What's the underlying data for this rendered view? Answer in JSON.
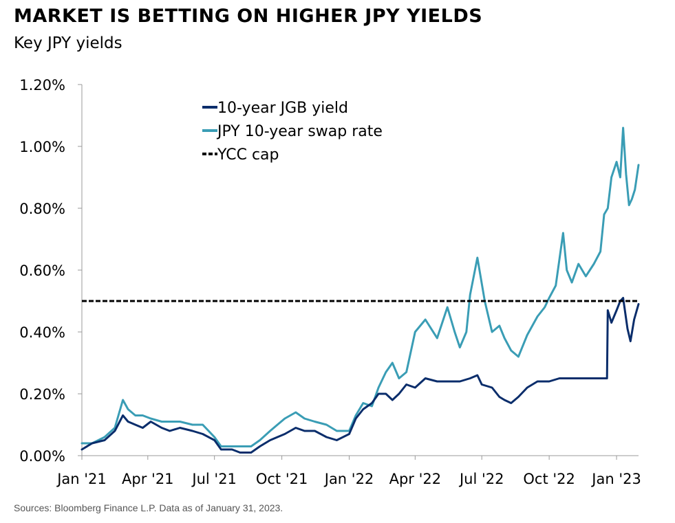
{
  "header": {
    "title": "MARKET IS BETTING ON HIGHER JPY YIELDS",
    "subtitle": "Key JPY yields"
  },
  "footer": {
    "source": "Sources: Bloomberg Finance L.P. Data as of January 31, 2023."
  },
  "colors": {
    "jgb": "#0a2d6b",
    "swap": "#3a9db5",
    "ycc": "#000000",
    "axis": "#999999"
  },
  "chart_data": {
    "type": "line",
    "x_unit": "date",
    "xlim": [
      "2021-01-01",
      "2023-01-31"
    ],
    "ylim": [
      0.0,
      1.2
    ],
    "y_format": "percent",
    "y_ticks": [
      0.0,
      0.2,
      0.4,
      0.6,
      0.8,
      1.0,
      1.2
    ],
    "y_tick_labels": [
      "0.00%",
      "0.20%",
      "0.40%",
      "0.60%",
      "0.80%",
      "1.00%",
      "1.20%"
    ],
    "x_ticks": [
      "2021-01-01",
      "2021-04-01",
      "2021-07-01",
      "2021-10-01",
      "2022-01-01",
      "2022-04-01",
      "2022-07-01",
      "2022-10-01",
      "2023-01-01"
    ],
    "x_tick_labels": [
      "Jan '21",
      "Apr '21",
      "Jul '21",
      "Oct '21",
      "Jan '22",
      "Apr '22",
      "Jul '22",
      "Oct '22",
      "Jan '23"
    ],
    "legend_position": "top-center",
    "grid": false,
    "series": [
      {
        "name": "10-year JGB yield",
        "color": "#0a2d6b",
        "style": "solid",
        "x": [
          "2021-01-01",
          "2021-01-15",
          "2021-02-01",
          "2021-02-15",
          "2021-02-26",
          "2021-03-05",
          "2021-03-15",
          "2021-03-25",
          "2021-04-05",
          "2021-04-20",
          "2021-05-01",
          "2021-05-15",
          "2021-06-01",
          "2021-06-15",
          "2021-07-01",
          "2021-07-10",
          "2021-07-25",
          "2021-08-05",
          "2021-08-20",
          "2021-09-01",
          "2021-09-15",
          "2021-09-25",
          "2021-10-05",
          "2021-10-20",
          "2021-11-01",
          "2021-11-15",
          "2021-12-01",
          "2021-12-15",
          "2022-01-01",
          "2022-01-10",
          "2022-01-20",
          "2022-02-01",
          "2022-02-10",
          "2022-02-20",
          "2022-03-01",
          "2022-03-10",
          "2022-03-20",
          "2022-04-01",
          "2022-04-15",
          "2022-05-01",
          "2022-05-15",
          "2022-06-01",
          "2022-06-15",
          "2022-06-25",
          "2022-07-01",
          "2022-07-15",
          "2022-07-25",
          "2022-08-01",
          "2022-08-10",
          "2022-08-20",
          "2022-09-01",
          "2022-09-15",
          "2022-10-01",
          "2022-10-15",
          "2022-11-01",
          "2022-11-15",
          "2022-12-01",
          "2022-12-15",
          "2022-12-19",
          "2022-12-20",
          "2022-12-25",
          "2023-01-01",
          "2023-01-06",
          "2023-01-10",
          "2023-01-13",
          "2023-01-16",
          "2023-01-20",
          "2023-01-25",
          "2023-01-31"
        ],
        "y": [
          0.02,
          0.04,
          0.05,
          0.08,
          0.13,
          0.11,
          0.1,
          0.09,
          0.11,
          0.09,
          0.08,
          0.09,
          0.08,
          0.07,
          0.05,
          0.02,
          0.02,
          0.01,
          0.01,
          0.03,
          0.05,
          0.06,
          0.07,
          0.09,
          0.08,
          0.08,
          0.06,
          0.05,
          0.07,
          0.12,
          0.15,
          0.17,
          0.2,
          0.2,
          0.18,
          0.2,
          0.23,
          0.22,
          0.25,
          0.24,
          0.24,
          0.24,
          0.25,
          0.26,
          0.23,
          0.22,
          0.19,
          0.18,
          0.17,
          0.19,
          0.22,
          0.24,
          0.24,
          0.25,
          0.25,
          0.25,
          0.25,
          0.25,
          0.25,
          0.47,
          0.43,
          0.47,
          0.5,
          0.51,
          0.46,
          0.41,
          0.37,
          0.44,
          0.49
        ]
      },
      {
        "name": "JPY 10-year swap rate",
        "color": "#3a9db5",
        "style": "solid",
        "x": [
          "2021-01-01",
          "2021-01-15",
          "2021-02-01",
          "2021-02-15",
          "2021-02-26",
          "2021-03-05",
          "2021-03-15",
          "2021-03-25",
          "2021-04-05",
          "2021-04-20",
          "2021-05-01",
          "2021-05-15",
          "2021-06-01",
          "2021-06-15",
          "2021-07-01",
          "2021-07-10",
          "2021-07-25",
          "2021-08-05",
          "2021-08-20",
          "2021-09-01",
          "2021-09-15",
          "2021-09-25",
          "2021-10-05",
          "2021-10-20",
          "2021-11-01",
          "2021-11-15",
          "2021-12-01",
          "2021-12-15",
          "2022-01-01",
          "2022-01-10",
          "2022-01-20",
          "2022-02-01",
          "2022-02-10",
          "2022-02-20",
          "2022-03-01",
          "2022-03-10",
          "2022-03-20",
          "2022-04-01",
          "2022-04-15",
          "2022-05-01",
          "2022-05-15",
          "2022-05-25",
          "2022-06-01",
          "2022-06-10",
          "2022-06-15",
          "2022-06-25",
          "2022-07-05",
          "2022-07-15",
          "2022-07-25",
          "2022-08-01",
          "2022-08-10",
          "2022-08-20",
          "2022-09-01",
          "2022-09-15",
          "2022-09-25",
          "2022-10-01",
          "2022-10-10",
          "2022-10-20",
          "2022-10-25",
          "2022-11-01",
          "2022-11-10",
          "2022-11-20",
          "2022-12-01",
          "2022-12-10",
          "2022-12-15",
          "2022-12-20",
          "2022-12-25",
          "2023-01-01",
          "2023-01-06",
          "2023-01-10",
          "2023-01-14",
          "2023-01-18",
          "2023-01-22",
          "2023-01-26",
          "2023-01-31"
        ],
        "y": [
          0.04,
          0.04,
          0.06,
          0.09,
          0.18,
          0.15,
          0.13,
          0.13,
          0.12,
          0.11,
          0.11,
          0.11,
          0.1,
          0.1,
          0.06,
          0.03,
          0.03,
          0.03,
          0.03,
          0.05,
          0.08,
          0.1,
          0.12,
          0.14,
          0.12,
          0.11,
          0.1,
          0.08,
          0.08,
          0.13,
          0.17,
          0.16,
          0.22,
          0.27,
          0.3,
          0.25,
          0.27,
          0.4,
          0.44,
          0.38,
          0.48,
          0.4,
          0.35,
          0.4,
          0.52,
          0.64,
          0.5,
          0.4,
          0.42,
          0.38,
          0.34,
          0.32,
          0.39,
          0.45,
          0.48,
          0.51,
          0.55,
          0.72,
          0.6,
          0.56,
          0.62,
          0.58,
          0.62,
          0.66,
          0.78,
          0.8,
          0.9,
          0.95,
          0.9,
          1.06,
          0.91,
          0.81,
          0.83,
          0.86,
          0.94
        ]
      },
      {
        "name": "YCC cap",
        "color": "#000000",
        "style": "dashed",
        "x": [
          "2021-01-01",
          "2023-01-31"
        ],
        "y": [
          0.5,
          0.5
        ]
      }
    ]
  }
}
